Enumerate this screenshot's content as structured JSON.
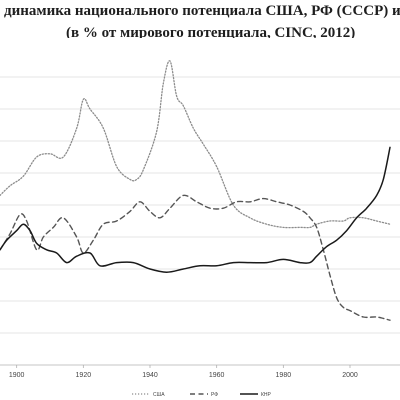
{
  "title": {
    "line1": "динамика национального потенциала США, РФ (СССР) и К",
    "line2": "(в % от мирового потенциала, CINC, 2012)"
  },
  "chart_data": {
    "type": "line",
    "title": "динамика национального потенциала США, РФ (СССР) и К (в % от мирового потенциала, CINC, 2012)",
    "xlabel": "",
    "ylabel": "",
    "xlim": [
      1895,
      2015
    ],
    "ylim": [
      0,
      10
    ],
    "grid": "horizontal",
    "legend": "bottom",
    "x_ticks": [
      "1900",
      "1920",
      "1940",
      "1960",
      "1980",
      "2000"
    ],
    "series": [
      {
        "name": "США",
        "style": "dotted",
        "color": "#8c8c8c",
        "x": [
          1895,
          1898,
          1902,
          1906,
          1910,
          1914,
          1918,
          1920,
          1922,
          1926,
          1930,
          1934,
          1936,
          1938,
          1942,
          1944,
          1946,
          1948,
          1950,
          1953,
          1956,
          1960,
          1965,
          1970,
          1975,
          1980,
          1985,
          1988,
          1990,
          1994,
          1998,
          2000,
          2004,
          2008,
          2012
        ],
        "y": [
          5.3,
          5.6,
          5.9,
          6.5,
          6.6,
          6.5,
          7.4,
          8.3,
          8.0,
          7.4,
          6.2,
          5.8,
          5.8,
          6.1,
          7.3,
          8.8,
          9.5,
          8.4,
          8.1,
          7.4,
          6.9,
          6.2,
          5.0,
          4.6,
          4.4,
          4.3,
          4.3,
          4.3,
          4.4,
          4.5,
          4.5,
          4.6,
          4.6,
          4.5,
          4.4
        ]
      },
      {
        "name": "РФ",
        "style": "dashed",
        "color": "#555555",
        "x": [
          1895,
          1898,
          1901,
          1903,
          1906,
          1908,
          1911,
          1914,
          1918,
          1920,
          1923,
          1926,
          1930,
          1934,
          1937,
          1940,
          1943,
          1946,
          1950,
          1954,
          1958,
          1962,
          1966,
          1970,
          1974,
          1978,
          1982,
          1986,
          1988,
          1990,
          1992,
          1994,
          1996,
          1998,
          2000,
          2004,
          2008,
          2012
        ],
        "y": [
          3.6,
          4.1,
          4.7,
          4.5,
          3.6,
          4.0,
          4.3,
          4.6,
          4.0,
          3.5,
          3.9,
          4.4,
          4.5,
          4.8,
          5.1,
          4.8,
          4.6,
          4.9,
          5.3,
          5.1,
          4.9,
          4.9,
          5.1,
          5.1,
          5.2,
          5.1,
          5.0,
          4.8,
          4.6,
          4.3,
          3.6,
          2.8,
          2.1,
          1.8,
          1.7,
          1.5,
          1.5,
          1.4
        ]
      },
      {
        "name": "КНР",
        "style": "solid",
        "color": "#1a1a1a",
        "x": [
          1895,
          1897,
          1900,
          1902,
          1904,
          1906,
          1909,
          1912,
          1915,
          1918,
          1922,
          1925,
          1930,
          1935,
          1940,
          1945,
          1950,
          1955,
          1960,
          1965,
          1970,
          1975,
          1980,
          1985,
          1988,
          1990,
          1993,
          1996,
          1999,
          2002,
          2005,
          2008,
          2010,
          2012
        ],
        "y": [
          3.6,
          3.9,
          4.2,
          4.4,
          4.2,
          3.8,
          3.6,
          3.5,
          3.2,
          3.4,
          3.5,
          3.1,
          3.2,
          3.2,
          3.0,
          2.9,
          3.0,
          3.1,
          3.1,
          3.2,
          3.2,
          3.2,
          3.3,
          3.2,
          3.2,
          3.4,
          3.7,
          3.9,
          4.2,
          4.6,
          4.9,
          5.3,
          5.8,
          6.8
        ]
      }
    ]
  }
}
